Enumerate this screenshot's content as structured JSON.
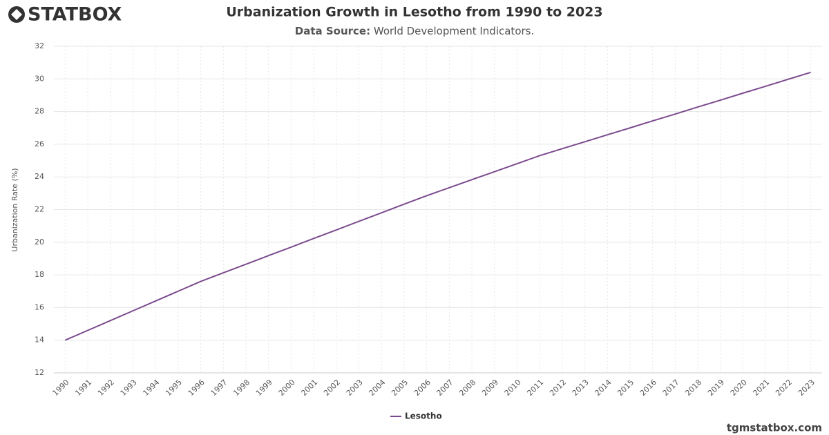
{
  "brand": "STATBOX",
  "footer": "tgmstatbox.com",
  "chart_data": {
    "type": "line",
    "title": "Urbanization Growth in Lesotho from 1990 to 2023",
    "subtitle_label": "Data Source:",
    "subtitle": "World Development Indicators.",
    "y_label": "Urbanization Rate (%)",
    "categories": [
      "1990",
      "1991",
      "1992",
      "1993",
      "1994",
      "1995",
      "1996",
      "1997",
      "1998",
      "1999",
      "2000",
      "2001",
      "2002",
      "2003",
      "2004",
      "2005",
      "2006",
      "2007",
      "2008",
      "2009",
      "2010",
      "2011",
      "2012",
      "2013",
      "2014",
      "2015",
      "2016",
      "2017",
      "2018",
      "2019",
      "2020",
      "2021",
      "2022",
      "2023"
    ],
    "series": [
      {
        "name": "Lesotho",
        "color": "#7b4a8e",
        "values": [
          14.0,
          14.6,
          15.2,
          15.8,
          16.4,
          17.0,
          17.6,
          18.13,
          18.65,
          19.18,
          19.7,
          20.23,
          20.75,
          21.28,
          21.8,
          22.33,
          22.85,
          23.34,
          23.83,
          24.32,
          24.81,
          25.3,
          25.73,
          26.15,
          26.58,
          27.0,
          27.43,
          27.85,
          28.28,
          28.7,
          29.13,
          29.55,
          29.98,
          30.4
        ]
      }
    ],
    "ylim": [
      12,
      32
    ],
    "yticks": [
      12,
      14,
      16,
      18,
      20,
      22,
      24,
      26,
      28,
      30,
      32
    ],
    "grid": true
  }
}
